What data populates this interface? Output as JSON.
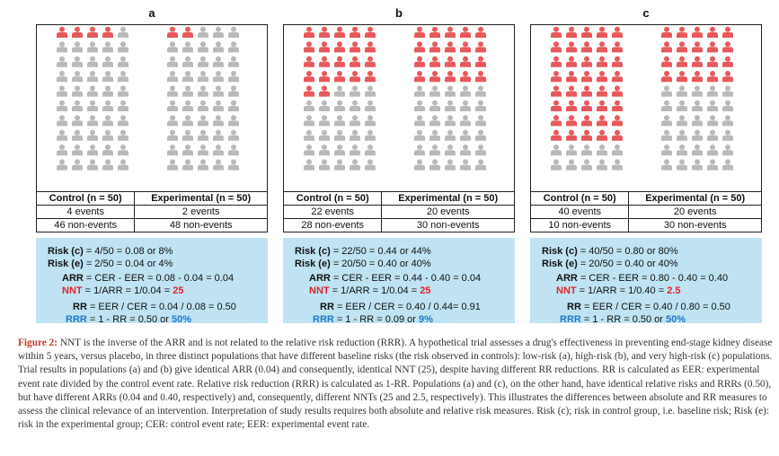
{
  "colors": {
    "event": "#e8585c",
    "nonevent": "#b9b9b9",
    "calc_bg": "#bfe3f2",
    "nnt_red": "#e0242b",
    "rrr_blue": "#1f78c8"
  },
  "icons": {
    "event_icon": "person-icon-red",
    "nonevent_icon": "person-icon-grey",
    "per_group": 50
  },
  "panels": [
    {
      "letter": "a",
      "control_header": "Control (n = 50)",
      "experimental_header": "Experimental (n = 50)",
      "control_events": 4,
      "experimental_events": 2,
      "control_events_text": "4 events",
      "experimental_events_text": "2 events",
      "control_nonevents_text": "46 non-events",
      "experimental_nonevents_text": "48 non-events",
      "risk_c_label": "Risk (c)",
      "risk_c": "= 4/50 = 0.08 or 8%",
      "risk_e_label": "Risk (e)",
      "risk_e": "= 2/50 = 0.04 or 4%",
      "arr_label": "ARR",
      "arr": "= CER - EER = 0.08 - 0.04 = 0.04",
      "nnt_label": "NNT",
      "nnt": "= 1/ARR = 1/0.04 =",
      "nnt_value": "25",
      "rr_label": "RR",
      "rr": "= EER / CER = 0.04 / 0.08 = 0.50",
      "rrr_label": "RRR",
      "rrr": "= 1 - RR = 0.50 or",
      "rrr_value": "50%"
    },
    {
      "letter": "b",
      "control_header": "Control (n = 50)",
      "experimental_header": "Experimental (n = 50)",
      "control_events": 22,
      "experimental_events": 20,
      "control_events_text": "22 events",
      "experimental_events_text": "20 events",
      "control_nonevents_text": "28 non-events",
      "experimental_nonevents_text": "30 non-events",
      "risk_c_label": "Risk (c)",
      "risk_c": "= 22/50 = 0.44 or 44%",
      "risk_e_label": "Risk (e)",
      "risk_e": "= 20/50 = 0.40 or 40%",
      "arr_label": "ARR",
      "arr": "= CER - EER = 0.44 - 0.40 = 0.04",
      "nnt_label": "NNT",
      "nnt": "= 1/ARR = 1/0.04 =",
      "nnt_value": "25",
      "rr_label": "RR",
      "rr": "= EER / CER = 0.40 / 0.44= 0.91",
      "rrr_label": "RRR",
      "rrr": "= 1 - RR = 0.09 or",
      "rrr_value": "9%"
    },
    {
      "letter": "c",
      "control_header": "Control (n = 50)",
      "experimental_header": "Experimental (n = 50)",
      "control_events": 40,
      "experimental_events": 20,
      "control_events_text": "40 events",
      "experimental_events_text": "20 events",
      "control_nonevents_text": "10 non-events",
      "experimental_nonevents_text": "30 non-events",
      "risk_c_label": "Risk (c)",
      "risk_c": "= 40/50 = 0.80 or 80%",
      "risk_e_label": "Risk (e)",
      "risk_e": "= 20/50 = 0.40 or 40%",
      "arr_label": "ARR",
      "arr": "= CER - EER = 0.80 - 0.40 = 0.40",
      "nnt_label": "NNT",
      "nnt": "= 1/ARR = 1/0.40 =",
      "nnt_value": "2.5",
      "rr_label": "RR",
      "rr": "= EER / CER = 0.40 / 0.80 = 0.50",
      "rrr_label": "RRR",
      "rrr": "= 1 - RR = 0.50 or",
      "rrr_value": "50%"
    }
  ],
  "caption": {
    "figure_label": "Figure 2:",
    "text": "NNT is the inverse of the ARR and is not related to the relative risk reduction (RRR). A hypothetical trial assesses a drug's effectiveness in preventing end-stage kidney disease within 5 years, versus placebo, in three distinct populations that have different baseline risks (the risk observed in controls): low-risk (a), high-risk (b), and very high-risk (c) populations. Trial results in populations (a) and (b) give identical ARR (0.04) and consequently, identical NNT (25), despite having different RR reductions. RR is calculated as EER: experimental event rate divided by the control event rate. Relative risk reduction (RRR) is calculated as 1-RR. Populations (a) and (c), on the other hand, have identical relative risks and RRRs (0.50), but have different ARRs (0.04 and 0.40, respectively) and, consequently, different NNTs (25 and 2.5, respectively). This illustrates the differences between absolute and RR measures to assess the clinical relevance of an intervention. Interpretation of study results requires both absolute and relative risk measures. Risk (c); risk in control group, i.e. baseline risk; Risk (e): risk in the experimental group; CER: control event rate; EER: experimental event rate."
  }
}
